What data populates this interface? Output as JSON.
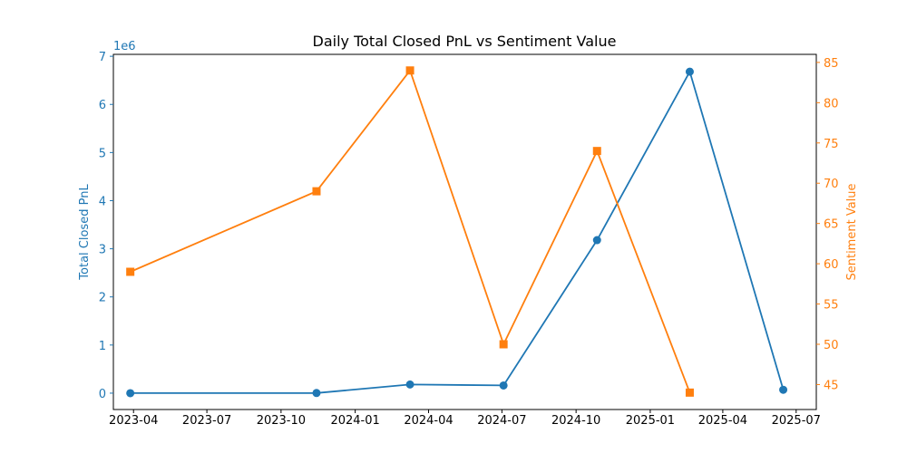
{
  "chart_data": {
    "type": "line",
    "title": "Daily Total Closed PnL vs Sentiment Value",
    "xlabel": "",
    "x_ticks": [
      "2023-04",
      "2023-07",
      "2023-10",
      "2024-01",
      "2024-04",
      "2024-07",
      "2024-10",
      "2025-01",
      "2025-04",
      "2025-07"
    ],
    "xlim": [
      "2023-03-07",
      "2025-07-26"
    ],
    "left_axis": {
      "label": "Total Closed PnL",
      "color": "#1f77b4",
      "offset_text": "1e6",
      "ylim": [
        -0.34,
        7.04
      ],
      "ticks": [
        "0",
        "1",
        "2",
        "3",
        "4",
        "5",
        "6",
        "7"
      ]
    },
    "right_axis": {
      "label": "Sentiment Value",
      "color": "#ff7f0e",
      "ylim": [
        41.9,
        86.0
      ],
      "ticks": [
        "45",
        "50",
        "55",
        "60",
        "65",
        "70",
        "75",
        "80",
        "85"
      ]
    },
    "series": [
      {
        "axis": "left",
        "marker": "circle",
        "color": "#1f77b4",
        "points": [
          {
            "x": "2023-03-28",
            "y": 0.0
          },
          {
            "x": "2023-11-14",
            "y": 0.003
          },
          {
            "x": "2024-03-09",
            "y": 0.18
          },
          {
            "x": "2024-07-03",
            "y": 0.16
          },
          {
            "x": "2024-10-27",
            "y": 3.18
          },
          {
            "x": "2025-02-19",
            "y": 6.68
          },
          {
            "x": "2025-06-15",
            "y": 0.07
          }
        ]
      },
      {
        "axis": "right",
        "marker": "square",
        "color": "#ff7f0e",
        "points": [
          {
            "x": "2023-03-28",
            "y": 59
          },
          {
            "x": "2023-11-14",
            "y": 69
          },
          {
            "x": "2024-03-09",
            "y": 84
          },
          {
            "x": "2024-07-03",
            "y": 50
          },
          {
            "x": "2024-10-27",
            "y": 74
          },
          {
            "x": "2025-02-19",
            "y": 44
          }
        ]
      }
    ],
    "grid": false,
    "legend": "none"
  }
}
